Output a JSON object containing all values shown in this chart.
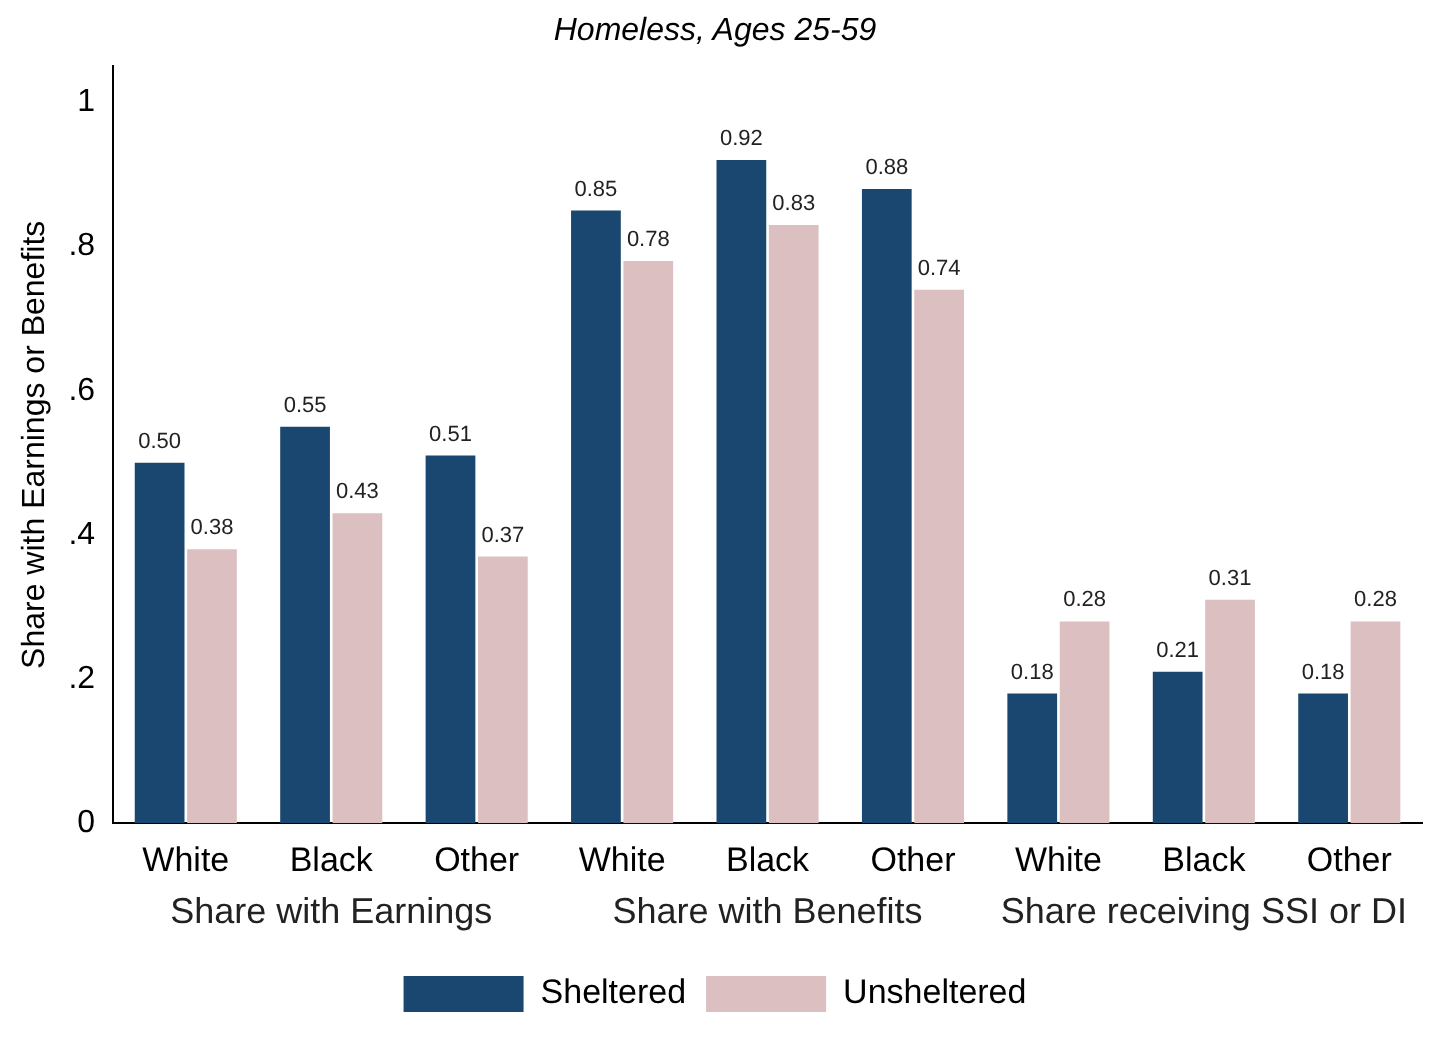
{
  "chart_data": {
    "type": "bar",
    "title": "Homeless, Ages 25-59",
    "ylabel": "Share with Earnings or Benefits",
    "categories": [
      "White",
      "Black",
      "Other",
      "White",
      "Black",
      "Other",
      "White",
      "Black",
      "Other"
    ],
    "series": [
      {
        "name": "Sheltered",
        "color": "#1a476f",
        "values": [
          0.5,
          0.55,
          0.51,
          0.85,
          0.92,
          0.88,
          0.18,
          0.21,
          0.18
        ],
        "value_labels": [
          "0.50",
          "0.55",
          "0.51",
          "0.85",
          "0.92",
          "0.88",
          "0.18",
          "0.21",
          "0.18"
        ]
      },
      {
        "name": "Unsheltered",
        "color": "#dcbfc1",
        "values": [
          0.38,
          0.43,
          0.37,
          0.78,
          0.83,
          0.74,
          0.28,
          0.31,
          0.28
        ],
        "value_labels": [
          "0.38",
          "0.43",
          "0.37",
          "0.78",
          "0.83",
          "0.74",
          "0.28",
          "0.31",
          "0.28"
        ]
      }
    ],
    "annotations": [
      "Share with Earnings",
      "Share with Benefits",
      "Share receiving SSI or DI"
    ],
    "ylim": [
      0,
      1.05
    ],
    "yticks": [
      0,
      {
        "value": 0.2,
        "label": ".2"
      },
      {
        "value": 0.4,
        "label": ".4"
      },
      {
        "value": 0.6,
        "label": ".6"
      },
      {
        "value": 0.8,
        "label": ".8"
      },
      1
    ],
    "grid": false,
    "legend": "bottom"
  }
}
